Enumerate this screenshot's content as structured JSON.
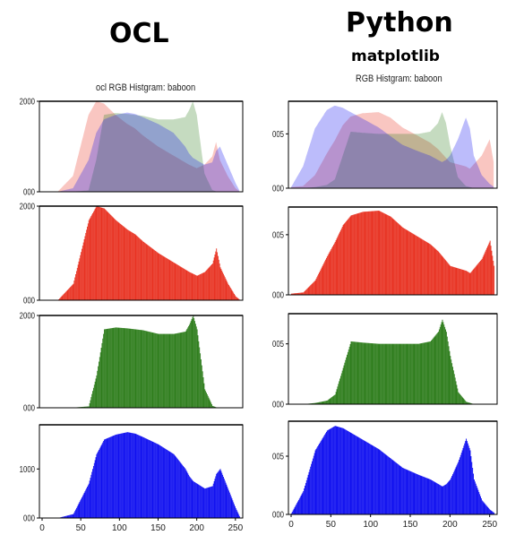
{
  "headers": {
    "left": "OCL",
    "right": "Python",
    "right_sub": "matplotlib"
  },
  "left_title": "ocl RGB Histgram: baboon",
  "right_title": "RGB Histgram: baboon",
  "colors": {
    "red": "#e83222",
    "green": "#2e7d1c",
    "blue": "#1010f0",
    "axis": "#000000"
  },
  "chart_data": [
    {
      "type": "area",
      "panel": "ocl-overlay",
      "x": [
        0,
        20,
        40,
        60,
        70,
        80,
        95,
        110,
        120,
        130,
        150,
        170,
        185,
        190,
        195,
        200,
        210,
        220,
        225,
        230,
        240,
        250,
        256
      ],
      "series": [
        {
          "values": [
            0,
            0,
            350,
            1700,
            2000,
            1950,
            1700,
            1500,
            1400,
            1250,
            1000,
            800,
            650,
            600,
            560,
            520,
            600,
            780,
            1100,
            700,
            350,
            80,
            0
          ]
        },
        {
          "values": [
            0,
            0,
            5,
            30,
            700,
            1700,
            1740,
            1720,
            1700,
            1680,
            1600,
            1600,
            1650,
            1800,
            2000,
            1700,
            400,
            40,
            10,
            5,
            0,
            0,
            0
          ]
        },
        {
          "values": [
            0,
            0,
            80,
            700,
            1300,
            1600,
            1700,
            1750,
            1720,
            1650,
            1500,
            1300,
            1000,
            850,
            750,
            700,
            600,
            650,
            900,
            1000,
            600,
            200,
            0
          ]
        }
      ],
      "ylim": [
        0,
        2000
      ],
      "yticks": [
        0,
        2000
      ],
      "xlim": [
        0,
        256
      ]
    },
    {
      "type": "bar",
      "panel": "ocl-red",
      "x": [
        0,
        20,
        40,
        60,
        70,
        80,
        95,
        110,
        120,
        130,
        150,
        170,
        185,
        190,
        195,
        200,
        210,
        220,
        225,
        230,
        240,
        250,
        256
      ],
      "values": [
        0,
        0,
        350,
        1700,
        2000,
        1950,
        1700,
        1500,
        1400,
        1250,
        1000,
        800,
        650,
        600,
        560,
        520,
        600,
        780,
        1100,
        700,
        350,
        80,
        0
      ],
      "ylim": [
        0,
        2000
      ],
      "yticks": [
        0,
        2000
      ],
      "xlim": [
        0,
        256
      ]
    },
    {
      "type": "bar",
      "panel": "ocl-green",
      "x": [
        0,
        20,
        40,
        60,
        70,
        80,
        95,
        110,
        120,
        130,
        150,
        170,
        185,
        190,
        195,
        200,
        210,
        220,
        225,
        230,
        240,
        250,
        256
      ],
      "values": [
        0,
        0,
        5,
        30,
        700,
        1700,
        1740,
        1720,
        1700,
        1680,
        1600,
        1600,
        1650,
        1800,
        2000,
        1700,
        400,
        40,
        10,
        5,
        0,
        0,
        0
      ],
      "ylim": [
        0,
        2000
      ],
      "yticks": [
        0,
        2000
      ],
      "xlim": [
        0,
        256
      ]
    },
    {
      "type": "bar",
      "panel": "ocl-blue",
      "x": [
        0,
        20,
        40,
        60,
        70,
        80,
        95,
        110,
        120,
        130,
        150,
        170,
        185,
        190,
        195,
        200,
        210,
        220,
        225,
        230,
        240,
        250,
        256
      ],
      "values": [
        0,
        0,
        80,
        700,
        1300,
        1600,
        1700,
        1750,
        1720,
        1650,
        1500,
        1300,
        1000,
        850,
        750,
        700,
        600,
        650,
        900,
        1000,
        600,
        200,
        0
      ],
      "ylim": [
        0,
        1900
      ],
      "yticks": [
        0,
        1000
      ],
      "xlim": [
        0,
        256
      ],
      "xticks": [
        0,
        50,
        100,
        150,
        200,
        250
      ]
    },
    {
      "type": "area",
      "panel": "py-overlay",
      "x": [
        0,
        15,
        30,
        45,
        55,
        65,
        75,
        90,
        110,
        125,
        140,
        160,
        175,
        185,
        190,
        195,
        200,
        210,
        220,
        225,
        230,
        240,
        250,
        256
      ],
      "series": [
        {
          "values": [
            0.001,
            0.002,
            0.012,
            0.032,
            0.044,
            0.058,
            0.066,
            0.069,
            0.07,
            0.065,
            0.056,
            0.048,
            0.042,
            0.036,
            0.032,
            0.028,
            0.024,
            0.022,
            0.02,
            0.018,
            0.022,
            0.03,
            0.045,
            0.02
          ]
        },
        {
          "values": [
            0.0,
            0.0,
            0.001,
            0.003,
            0.008,
            0.03,
            0.052,
            0.051,
            0.05,
            0.05,
            0.05,
            0.05,
            0.052,
            0.06,
            0.07,
            0.06,
            0.04,
            0.01,
            0.002,
            0.001,
            0.0,
            0.0,
            0.0,
            0.0
          ]
        },
        {
          "values": [
            0.001,
            0.02,
            0.055,
            0.072,
            0.076,
            0.074,
            0.07,
            0.064,
            0.056,
            0.048,
            0.04,
            0.034,
            0.03,
            0.026,
            0.024,
            0.026,
            0.03,
            0.045,
            0.065,
            0.055,
            0.03,
            0.012,
            0.004,
            0.001
          ]
        }
      ],
      "ylim": [
        0,
        0.08
      ],
      "xlim": [
        0,
        256
      ]
    },
    {
      "type": "bar",
      "panel": "py-red",
      "x": [
        0,
        15,
        30,
        45,
        55,
        65,
        75,
        90,
        110,
        125,
        140,
        160,
        175,
        185,
        190,
        195,
        200,
        210,
        220,
        225,
        230,
        240,
        250,
        256
      ],
      "values": [
        0.001,
        0.002,
        0.012,
        0.032,
        0.044,
        0.058,
        0.066,
        0.069,
        0.07,
        0.065,
        0.056,
        0.048,
        0.042,
        0.036,
        0.032,
        0.028,
        0.024,
        0.022,
        0.02,
        0.018,
        0.022,
        0.03,
        0.045,
        0.02
      ],
      "ylim": [
        0,
        0.073
      ],
      "xlim": [
        0,
        256
      ]
    },
    {
      "type": "bar",
      "panel": "py-green",
      "x": [
        0,
        15,
        30,
        45,
        55,
        65,
        75,
        90,
        110,
        125,
        140,
        160,
        175,
        185,
        190,
        195,
        200,
        210,
        220,
        225,
        230,
        240,
        250,
        256
      ],
      "values": [
        0.0,
        0.0,
        0.001,
        0.003,
        0.008,
        0.03,
        0.052,
        0.051,
        0.05,
        0.05,
        0.05,
        0.05,
        0.052,
        0.06,
        0.07,
        0.06,
        0.04,
        0.01,
        0.002,
        0.001,
        0.0,
        0.0,
        0.0,
        0.0
      ],
      "ylim": [
        0,
        0.075
      ],
      "xlim": [
        0,
        256
      ]
    },
    {
      "type": "bar",
      "panel": "py-blue",
      "x": [
        0,
        15,
        30,
        45,
        55,
        65,
        75,
        90,
        110,
        125,
        140,
        160,
        175,
        185,
        190,
        195,
        200,
        210,
        220,
        225,
        230,
        240,
        250,
        256
      ],
      "values": [
        0.001,
        0.02,
        0.055,
        0.072,
        0.076,
        0.074,
        0.07,
        0.064,
        0.056,
        0.048,
        0.04,
        0.034,
        0.03,
        0.026,
        0.024,
        0.026,
        0.03,
        0.045,
        0.065,
        0.055,
        0.03,
        0.012,
        0.004,
        0.001
      ],
      "ylim": [
        0,
        0.08
      ],
      "xlim": [
        0,
        256
      ],
      "xticks": [
        0,
        50,
        100,
        150,
        200,
        250
      ]
    }
  ]
}
